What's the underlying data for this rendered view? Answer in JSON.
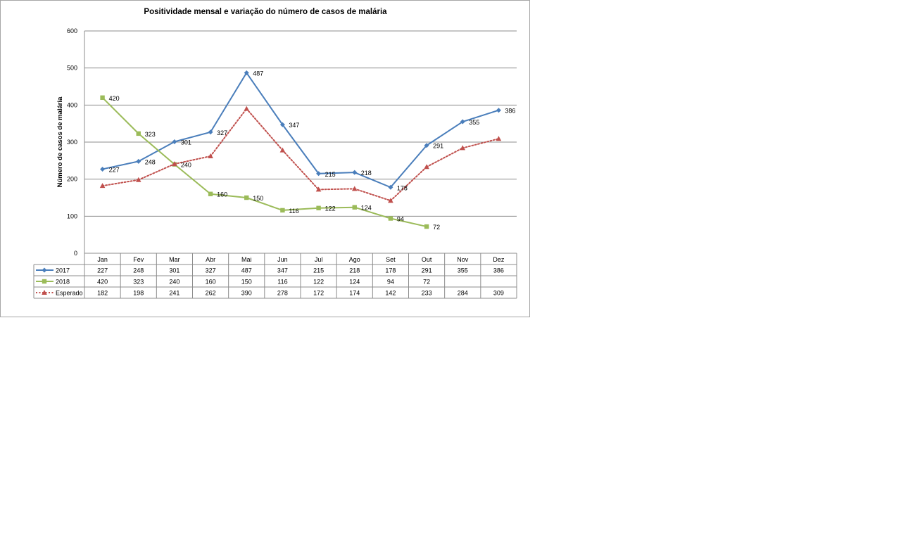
{
  "chart_data": {
    "type": "line",
    "title": "Positividade mensal e variação do número de casos de malária",
    "ylabel": "Número de casos de malária",
    "xlabel": "",
    "ylim": [
      0,
      600
    ],
    "yticks": [
      0,
      100,
      200,
      300,
      400,
      500,
      600
    ],
    "grid": true,
    "legend": "data table",
    "categories": [
      "Jan",
      "Fev",
      "Mar",
      "Abr",
      "Mai",
      "Jun",
      "Jul",
      "Ago",
      "Set",
      "Out",
      "Nov",
      "Dez"
    ],
    "series": [
      {
        "name": "2017",
        "color": "#4a7ebb",
        "style": "solid",
        "marker": "diamond",
        "values": [
          227,
          248,
          301,
          327,
          487,
          347,
          215,
          218,
          178,
          291,
          355,
          386
        ],
        "labels": true
      },
      {
        "name": "2018",
        "color": "#9bbb59",
        "style": "solid",
        "marker": "square",
        "values": [
          420,
          323,
          240,
          160,
          150,
          116,
          122,
          124,
          94,
          72,
          null,
          null
        ],
        "labels": true
      },
      {
        "name": "Esperado",
        "color": "#c0504d",
        "style": "dotted",
        "marker": "triangle",
        "values": [
          182,
          198,
          241,
          262,
          390,
          278,
          172,
          174,
          142,
          233,
          284,
          309
        ],
        "labels": false
      }
    ]
  }
}
